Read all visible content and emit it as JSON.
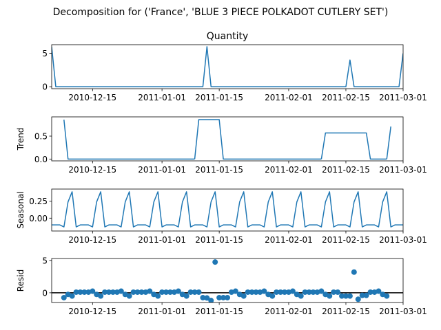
{
  "figure": {
    "suptitle": "Decomposition for ('France', 'BLUE 3 PIECE POLKADOT CUTLERY SET')"
  },
  "colors": {
    "series": "#1f77b4",
    "axis": "#000000",
    "zero_line": "#000000"
  },
  "chart_data": [
    {
      "type": "line",
      "title": "Quantity",
      "ylabel": "",
      "xlim": [
        "2010-12-05",
        "2011-03-01"
      ],
      "ylim": [
        -0.3,
        6.3
      ],
      "yticks": [
        0,
        5
      ],
      "xticks": [
        "2010-12-15",
        "2011-01-01",
        "2011-01-15",
        "2011-02-01",
        "2011-02-15",
        "2011-03-01"
      ],
      "series": [
        {
          "x": [
            "2010-12-05",
            "2010-12-06",
            "2010-12-07",
            "2011-01-11",
            "2011-01-12",
            "2011-01-13",
            "2011-02-15",
            "2011-02-16",
            "2011-02-17",
            "2011-02-28",
            "2011-03-01"
          ],
          "y": [
            6,
            0,
            0,
            0,
            6,
            0,
            0,
            4,
            0,
            0,
            5
          ]
        }
      ]
    },
    {
      "type": "line",
      "title": "",
      "ylabel": "Trend",
      "xlim": [
        "2010-12-05",
        "2011-03-01"
      ],
      "ylim": [
        -0.04,
        0.92
      ],
      "yticks": [
        0.0,
        0.5
      ],
      "xticks": [
        "2010-12-15",
        "2011-01-01",
        "2011-01-15",
        "2011-02-01",
        "2011-02-15",
        "2011-03-01"
      ],
      "series": [
        {
          "segments": [
            {
              "x": [
                "2010-12-08",
                "2010-12-09",
                "2011-01-09"
              ],
              "y": [
                0.86,
                0,
                0
              ]
            },
            {
              "x": [
                "2011-01-09",
                "2011-01-10",
                "2011-01-15",
                "2011-01-16",
                "2011-02-09"
              ],
              "y": [
                0,
                0.86,
                0.86,
                0,
                0
              ]
            },
            {
              "x": [
                "2011-02-09",
                "2011-02-10",
                "2011-02-20",
                "2011-02-21",
                "2011-02-25"
              ],
              "y": [
                0,
                0.57,
                0.57,
                0,
                0
              ]
            },
            {
              "x": [
                "2011-02-25",
                "2011-02-26"
              ],
              "y": [
                0,
                0.71
              ]
            }
          ]
        }
      ]
    },
    {
      "type": "line",
      "title": "",
      "ylabel": "Seasonal",
      "xlim": [
        "2010-12-05",
        "2011-03-01"
      ],
      "ylim": [
        -0.19,
        0.43
      ],
      "yticks": [
        0.0,
        0.25
      ],
      "xticks": [
        "2010-12-15",
        "2011-01-01",
        "2011-01-15",
        "2011-02-01",
        "2011-02-15",
        "2011-03-01"
      ],
      "period_days": 7,
      "start": "2010-12-05",
      "series": [
        {
          "pattern": [
            -0.1,
            -0.1,
            -0.1,
            -0.13,
            0.24,
            0.39,
            -0.13
          ]
        }
      ]
    },
    {
      "type": "scatter",
      "title": "",
      "ylabel": "Resid",
      "xlim": [
        "2010-12-05",
        "2011-03-01"
      ],
      "ylim": [
        -1.5,
        5.3
      ],
      "yticks": [
        0,
        5
      ],
      "xticks": [
        "2010-12-15",
        "2011-01-01",
        "2011-01-15",
        "2011-02-01",
        "2011-02-15",
        "2011-03-01"
      ],
      "hline": 0,
      "series": [
        {
          "x": [
            "2010-12-08",
            "2010-12-09",
            "2010-12-10",
            "2010-12-11",
            "2010-12-12",
            "2010-12-13",
            "2010-12-14",
            "2010-12-15",
            "2010-12-16",
            "2010-12-17",
            "2010-12-18",
            "2010-12-19",
            "2010-12-20",
            "2010-12-21",
            "2010-12-22",
            "2010-12-23",
            "2010-12-24",
            "2010-12-25",
            "2010-12-26",
            "2010-12-27",
            "2010-12-28",
            "2010-12-29",
            "2010-12-30",
            "2010-12-31",
            "2011-01-01",
            "2011-01-02",
            "2011-01-03",
            "2011-01-04",
            "2011-01-05",
            "2011-01-06",
            "2011-01-07",
            "2011-01-08",
            "2011-01-09",
            "2011-01-10",
            "2011-01-11",
            "2011-01-12",
            "2011-01-13",
            "2011-01-14",
            "2011-01-15",
            "2011-01-16",
            "2011-01-17",
            "2011-01-18",
            "2011-01-19",
            "2011-01-20",
            "2011-01-21",
            "2011-01-22",
            "2011-01-23",
            "2011-01-24",
            "2011-01-25",
            "2011-01-26",
            "2011-01-27",
            "2011-01-28",
            "2011-01-29",
            "2011-01-30",
            "2011-01-31",
            "2011-02-01",
            "2011-02-02",
            "2011-02-03",
            "2011-02-04",
            "2011-02-05",
            "2011-02-06",
            "2011-02-07",
            "2011-02-08",
            "2011-02-09",
            "2011-02-10",
            "2011-02-11",
            "2011-02-12",
            "2011-02-13",
            "2011-02-14",
            "2011-02-15",
            "2011-02-16",
            "2011-02-17",
            "2011-02-18",
            "2011-02-19",
            "2011-02-20",
            "2011-02-21",
            "2011-02-22",
            "2011-02-23",
            "2011-02-24",
            "2011-02-25"
          ],
          "y": [
            -0.75,
            -0.25,
            -0.5,
            0.1,
            0.1,
            0.1,
            0.1,
            0.25,
            -0.25,
            -0.5,
            0.1,
            0.1,
            0.1,
            0.1,
            0.25,
            -0.25,
            -0.5,
            0.1,
            0.1,
            0.1,
            0.1,
            0.25,
            -0.25,
            -0.5,
            0.1,
            0.1,
            0.1,
            0.1,
            0.25,
            -0.25,
            -0.5,
            0.1,
            0.1,
            0.1,
            -0.75,
            -0.8,
            -1.2,
            4.75,
            -0.75,
            -0.75,
            -0.75,
            0.1,
            0.25,
            -0.25,
            -0.5,
            0.1,
            0.1,
            0.1,
            0.1,
            0.25,
            -0.25,
            -0.5,
            0.1,
            0.1,
            0.1,
            0.1,
            0.25,
            -0.25,
            -0.5,
            0.1,
            0.1,
            0.1,
            0.1,
            0.25,
            -0.25,
            -0.5,
            0.1,
            0.1,
            -0.5,
            -0.5,
            -0.5,
            3.2,
            -1.0,
            -0.4,
            -0.4,
            0.1,
            0.1,
            0.25,
            -0.25,
            -0.5
          ]
        }
      ]
    }
  ]
}
